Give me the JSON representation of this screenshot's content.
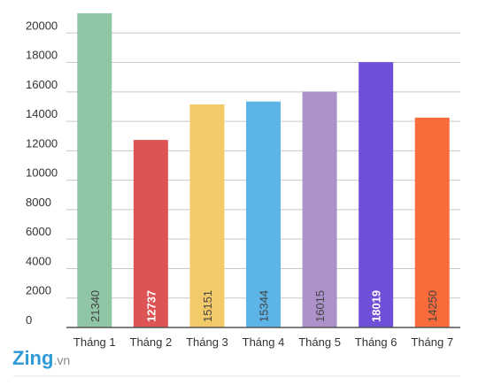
{
  "chart_data": {
    "type": "bar",
    "categories": [
      "Tháng 1",
      "Tháng 2",
      "Tháng 3",
      "Tháng 4",
      "Tháng 5",
      "Tháng 6",
      "Tháng 7"
    ],
    "values": [
      21340,
      12737,
      15151,
      15344,
      16015,
      18019,
      14250
    ],
    "colors": [
      "#8ec6a6",
      "#de5454",
      "#f2ca6a",
      "#5db4e6",
      "#ad91ca",
      "#6f4ed8",
      "#fa6b3b"
    ],
    "data_labels": [
      "21340",
      "12737",
      "15151",
      "15344",
      "16015",
      "18019",
      "14250"
    ],
    "data_label_colors": [
      "#444444",
      "#ffffff",
      "#444444",
      "#444444",
      "#444444",
      "#ffffff",
      "#444444"
    ],
    "y_ticks": [
      0,
      2000,
      4000,
      6000,
      8000,
      10000,
      12000,
      14000,
      16000,
      18000,
      20000
    ],
    "ylim": [
      0,
      22000
    ],
    "grid": true,
    "title": "",
    "xlabel": "",
    "ylabel": ""
  },
  "brand": {
    "name": "Zing",
    "suffix": ".vn",
    "color_z": "#2f9ad8",
    "color_ing": "#8a8a8a"
  }
}
